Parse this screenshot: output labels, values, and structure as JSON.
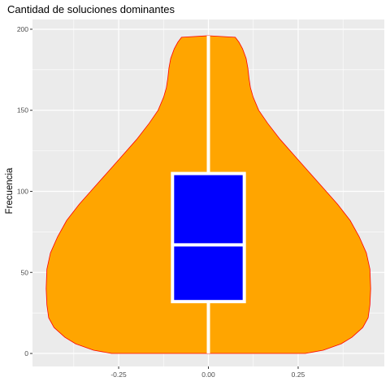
{
  "chart_data": {
    "type": "violin",
    "title": "Cantidad de soluciones dominantes",
    "xlabel": "",
    "ylabel": "Frecuencia",
    "xlim": [
      -0.49,
      0.49
    ],
    "ylim": [
      -8,
      206
    ],
    "x_ticks": [
      -0.25,
      0.0,
      0.25
    ],
    "x_tick_labels": [
      "-0.25",
      "0.00",
      "0.25"
    ],
    "y_ticks": [
      0,
      50,
      100,
      150,
      200
    ],
    "y_tick_labels": [
      "0",
      "50",
      "100",
      "150",
      "200"
    ],
    "grid": true,
    "violin": {
      "fill_color": "#ffa500",
      "outline_color": "#ff0000",
      "profile": [
        {
          "y": 0,
          "half_width": 0.27
        },
        {
          "y": 2,
          "half_width": 0.32
        },
        {
          "y": 6,
          "half_width": 0.37
        },
        {
          "y": 10,
          "half_width": 0.4
        },
        {
          "y": 16,
          "half_width": 0.43
        },
        {
          "y": 22,
          "half_width": 0.445
        },
        {
          "y": 30,
          "half_width": 0.45
        },
        {
          "y": 40,
          "half_width": 0.452
        },
        {
          "y": 52,
          "half_width": 0.45
        },
        {
          "y": 62,
          "half_width": 0.44
        },
        {
          "y": 72,
          "half_width": 0.42
        },
        {
          "y": 82,
          "half_width": 0.395
        },
        {
          "y": 92,
          "half_width": 0.36
        },
        {
          "y": 102,
          "half_width": 0.32
        },
        {
          "y": 112,
          "half_width": 0.28
        },
        {
          "y": 122,
          "half_width": 0.24
        },
        {
          "y": 132,
          "half_width": 0.2
        },
        {
          "y": 142,
          "half_width": 0.165
        },
        {
          "y": 150,
          "half_width": 0.14
        },
        {
          "y": 158,
          "half_width": 0.125
        },
        {
          "y": 164,
          "half_width": 0.117
        },
        {
          "y": 170,
          "half_width": 0.113
        },
        {
          "y": 176,
          "half_width": 0.11
        },
        {
          "y": 182,
          "half_width": 0.105
        },
        {
          "y": 188,
          "half_width": 0.095
        },
        {
          "y": 192,
          "half_width": 0.085
        },
        {
          "y": 195,
          "half_width": 0.075
        },
        {
          "y": 196,
          "half_width": 0.0
        }
      ]
    },
    "boxplot": {
      "fill_color": "#0000ff",
      "outline_color": "#ffffff",
      "x_center": 0.0,
      "half_width": 0.1,
      "min": 0,
      "q1": 32,
      "median": 67,
      "q3": 111,
      "max": 196
    }
  }
}
